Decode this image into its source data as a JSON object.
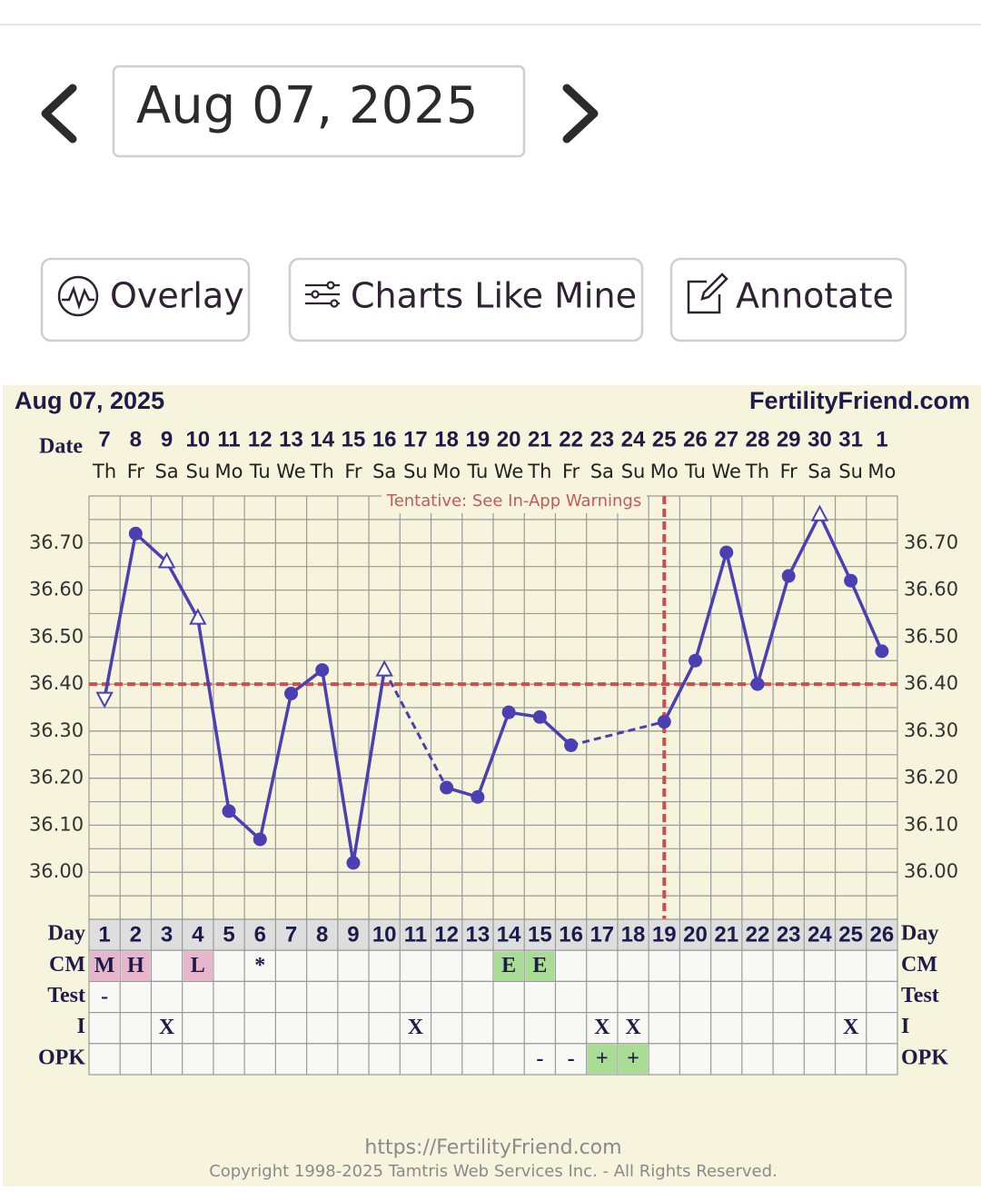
{
  "date_nav": {
    "date": "Aug 07, 2025"
  },
  "buttons": [
    "Overlay",
    "Charts Like Mine",
    "Annotate"
  ],
  "chart_data": {
    "type": "line",
    "title": "Aug 07, 2025",
    "brand": "FertilityFriend.com",
    "date_label": "Date",
    "categories": [
      "7",
      "8",
      "9",
      "10",
      "11",
      "12",
      "13",
      "14",
      "15",
      "16",
      "17",
      "18",
      "19",
      "20",
      "21",
      "22",
      "23",
      "24",
      "25",
      "26",
      "27",
      "28",
      "29",
      "30",
      "31",
      "1"
    ],
    "weekdays": [
      "Th",
      "Fr",
      "Sa",
      "Su",
      "Mo",
      "Tu",
      "We",
      "Th",
      "Fr",
      "Sa",
      "Su",
      "Mo",
      "Tu",
      "We",
      "Th",
      "Fr",
      "Sa",
      "Su",
      "Mo",
      "Tu",
      "We",
      "Th",
      "Fr",
      "Sa",
      "Su",
      "Mo"
    ],
    "annotation": "Tentative: See In-App Warnings",
    "values": [
      36.37,
      36.72,
      36.66,
      36.54,
      36.13,
      36.07,
      36.38,
      36.43,
      36.02,
      36.43,
      null,
      36.18,
      36.16,
      36.34,
      36.33,
      36.27,
      null,
      null,
      36.32,
      36.45,
      36.68,
      36.4,
      36.63,
      36.76,
      36.62,
      36.47
    ],
    "markers": [
      "triangle-down",
      "circle",
      "triangle-up",
      "triangle-up",
      "circle",
      "circle",
      "circle",
      "circle",
      "circle",
      "triangle-up",
      null,
      "circle",
      "circle",
      "circle",
      "circle",
      "circle",
      null,
      null,
      "circle",
      "circle",
      "circle",
      "circle",
      "circle",
      "triangle-up",
      "circle",
      "circle"
    ],
    "color": "#4a3fb3",
    "ylim": [
      35.9,
      36.8
    ],
    "yticks": [
      {
        "value": 36.0,
        "label": "36.00"
      },
      {
        "value": 36.1,
        "label": "36.10"
      },
      {
        "value": 36.2,
        "label": "36.20"
      },
      {
        "value": 36.3,
        "label": "36.30"
      },
      {
        "value": 36.4,
        "label": "36.40"
      },
      {
        "value": 36.5,
        "label": "36.50"
      },
      {
        "value": 36.6,
        "label": "36.60"
      },
      {
        "value": 36.7,
        "label": "36.70"
      }
    ],
    "ygrid": [
      35.95,
      36.0,
      36.05,
      36.1,
      36.15,
      36.2,
      36.25,
      36.3,
      36.35,
      36.4,
      36.45,
      36.5,
      36.55,
      36.6,
      36.65,
      36.7,
      36.75
    ],
    "grid": true,
    "coverline": 36.4,
    "ovulation_day": 19,
    "marker_color": "#c9504f",
    "table": {
      "rows": [
        {
          "label": "Day",
          "cells": [
            1,
            2,
            3,
            4,
            5,
            6,
            7,
            8,
            9,
            10,
            11,
            12,
            13,
            14,
            15,
            16,
            17,
            18,
            19,
            20,
            21,
            22,
            23,
            24,
            25,
            26
          ]
        },
        {
          "label": "CM",
          "cells": [
            "M",
            "H",
            null,
            "L",
            null,
            "*",
            null,
            null,
            null,
            null,
            null,
            null,
            null,
            "E",
            "E",
            null,
            null,
            null,
            null,
            null,
            null,
            null,
            null,
            null,
            null,
            null
          ],
          "fills": [
            "#e6b6cb",
            "#e6b6cb",
            null,
            "#e6b6cb",
            null,
            null,
            null,
            null,
            null,
            null,
            null,
            null,
            null,
            "#a9dc95",
            "#a9dc95",
            null,
            null,
            null,
            null,
            null,
            null,
            null,
            null,
            null,
            null,
            null
          ]
        },
        {
          "label": "Test",
          "cells": [
            "-",
            null,
            null,
            null,
            null,
            null,
            null,
            null,
            null,
            null,
            null,
            null,
            null,
            null,
            null,
            null,
            null,
            null,
            null,
            null,
            null,
            null,
            null,
            null,
            null,
            null
          ]
        },
        {
          "label": "I",
          "cells": [
            null,
            null,
            "X",
            null,
            null,
            null,
            null,
            null,
            null,
            null,
            "X",
            null,
            null,
            null,
            null,
            null,
            "X",
            "X",
            null,
            null,
            null,
            null,
            null,
            null,
            "X",
            null
          ]
        },
        {
          "label": "OPK",
          "cells": [
            null,
            null,
            null,
            null,
            null,
            null,
            null,
            null,
            null,
            null,
            null,
            null,
            null,
            null,
            "-",
            "-",
            "+",
            "+",
            null,
            null,
            null,
            null,
            null,
            null,
            null,
            null
          ],
          "fills": [
            null,
            null,
            null,
            null,
            null,
            null,
            null,
            null,
            null,
            null,
            null,
            null,
            null,
            null,
            null,
            null,
            "#a9dc95",
            "#a9dc95",
            null,
            null,
            null,
            null,
            null,
            null,
            null,
            null
          ]
        }
      ]
    }
  },
  "footer": {
    "url": "https://FertilityFriend.com",
    "copyright": "Copyright 1998-2025 Tamtris Web Services Inc. - All Rights Reserved."
  }
}
